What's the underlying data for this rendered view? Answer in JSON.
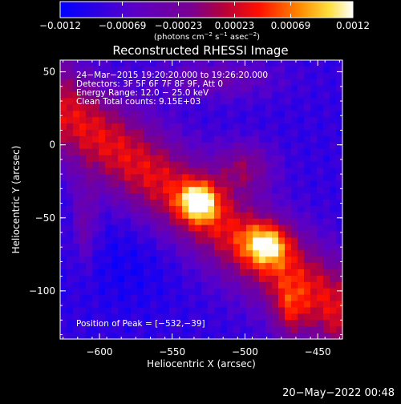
{
  "chart_data": {
    "type": "heatmap",
    "title": "Reconstructed RHESSI Image",
    "xlabel": "Heliocentric X (arcsec)",
    "ylabel": "Heliocentric Y (arcsec)",
    "xlim": [
      -627,
      -433
    ],
    "ylim": [
      -133,
      58
    ],
    "x_ticks": [
      -600,
      -550,
      -500,
      -450
    ],
    "x_tick_labels": [
      "−600",
      "−550",
      "−500",
      "−450"
    ],
    "y_ticks": [
      50,
      0,
      -50,
      -100
    ],
    "y_tick_labels": [
      "50",
      "0",
      "−50",
      "−100"
    ],
    "colorbar": {
      "range": [
        -0.0012,
        0.0012
      ],
      "ticks": [
        -0.0012,
        -0.00069,
        -0.00023,
        0.00023,
        0.00069,
        0.0012
      ],
      "tick_labels": [
        "−0.0012",
        "−0.00069",
        "−0.00023",
        "0.00023",
        "0.00069",
        "0.0012"
      ],
      "units_base": "(photons cm",
      "units_exp1": "−2",
      "units_mid": " s",
      "units_exp2": "−1",
      "units_end": " asec",
      "units_exp3": "−2",
      "units_close": ")"
    },
    "info_lines": [
      "24−Mar−2015 19:20:20.000 to 19:26:20.000",
      "Detectors: 3F 5F 6F 7F 8F 9F, Att 0",
      "Energy Range: 12.0 − 25.0 keV",
      "Clean     Total counts: 9.15E+03"
    ],
    "peak_label": "Position of Peak = [−532,−39]",
    "sources": [
      {
        "x": -532,
        "y": -39,
        "value": 0.0012
      },
      {
        "x": -485,
        "y": -68,
        "value": 0.00105
      }
    ]
  },
  "footer_date": "20−May−2022 00:48"
}
